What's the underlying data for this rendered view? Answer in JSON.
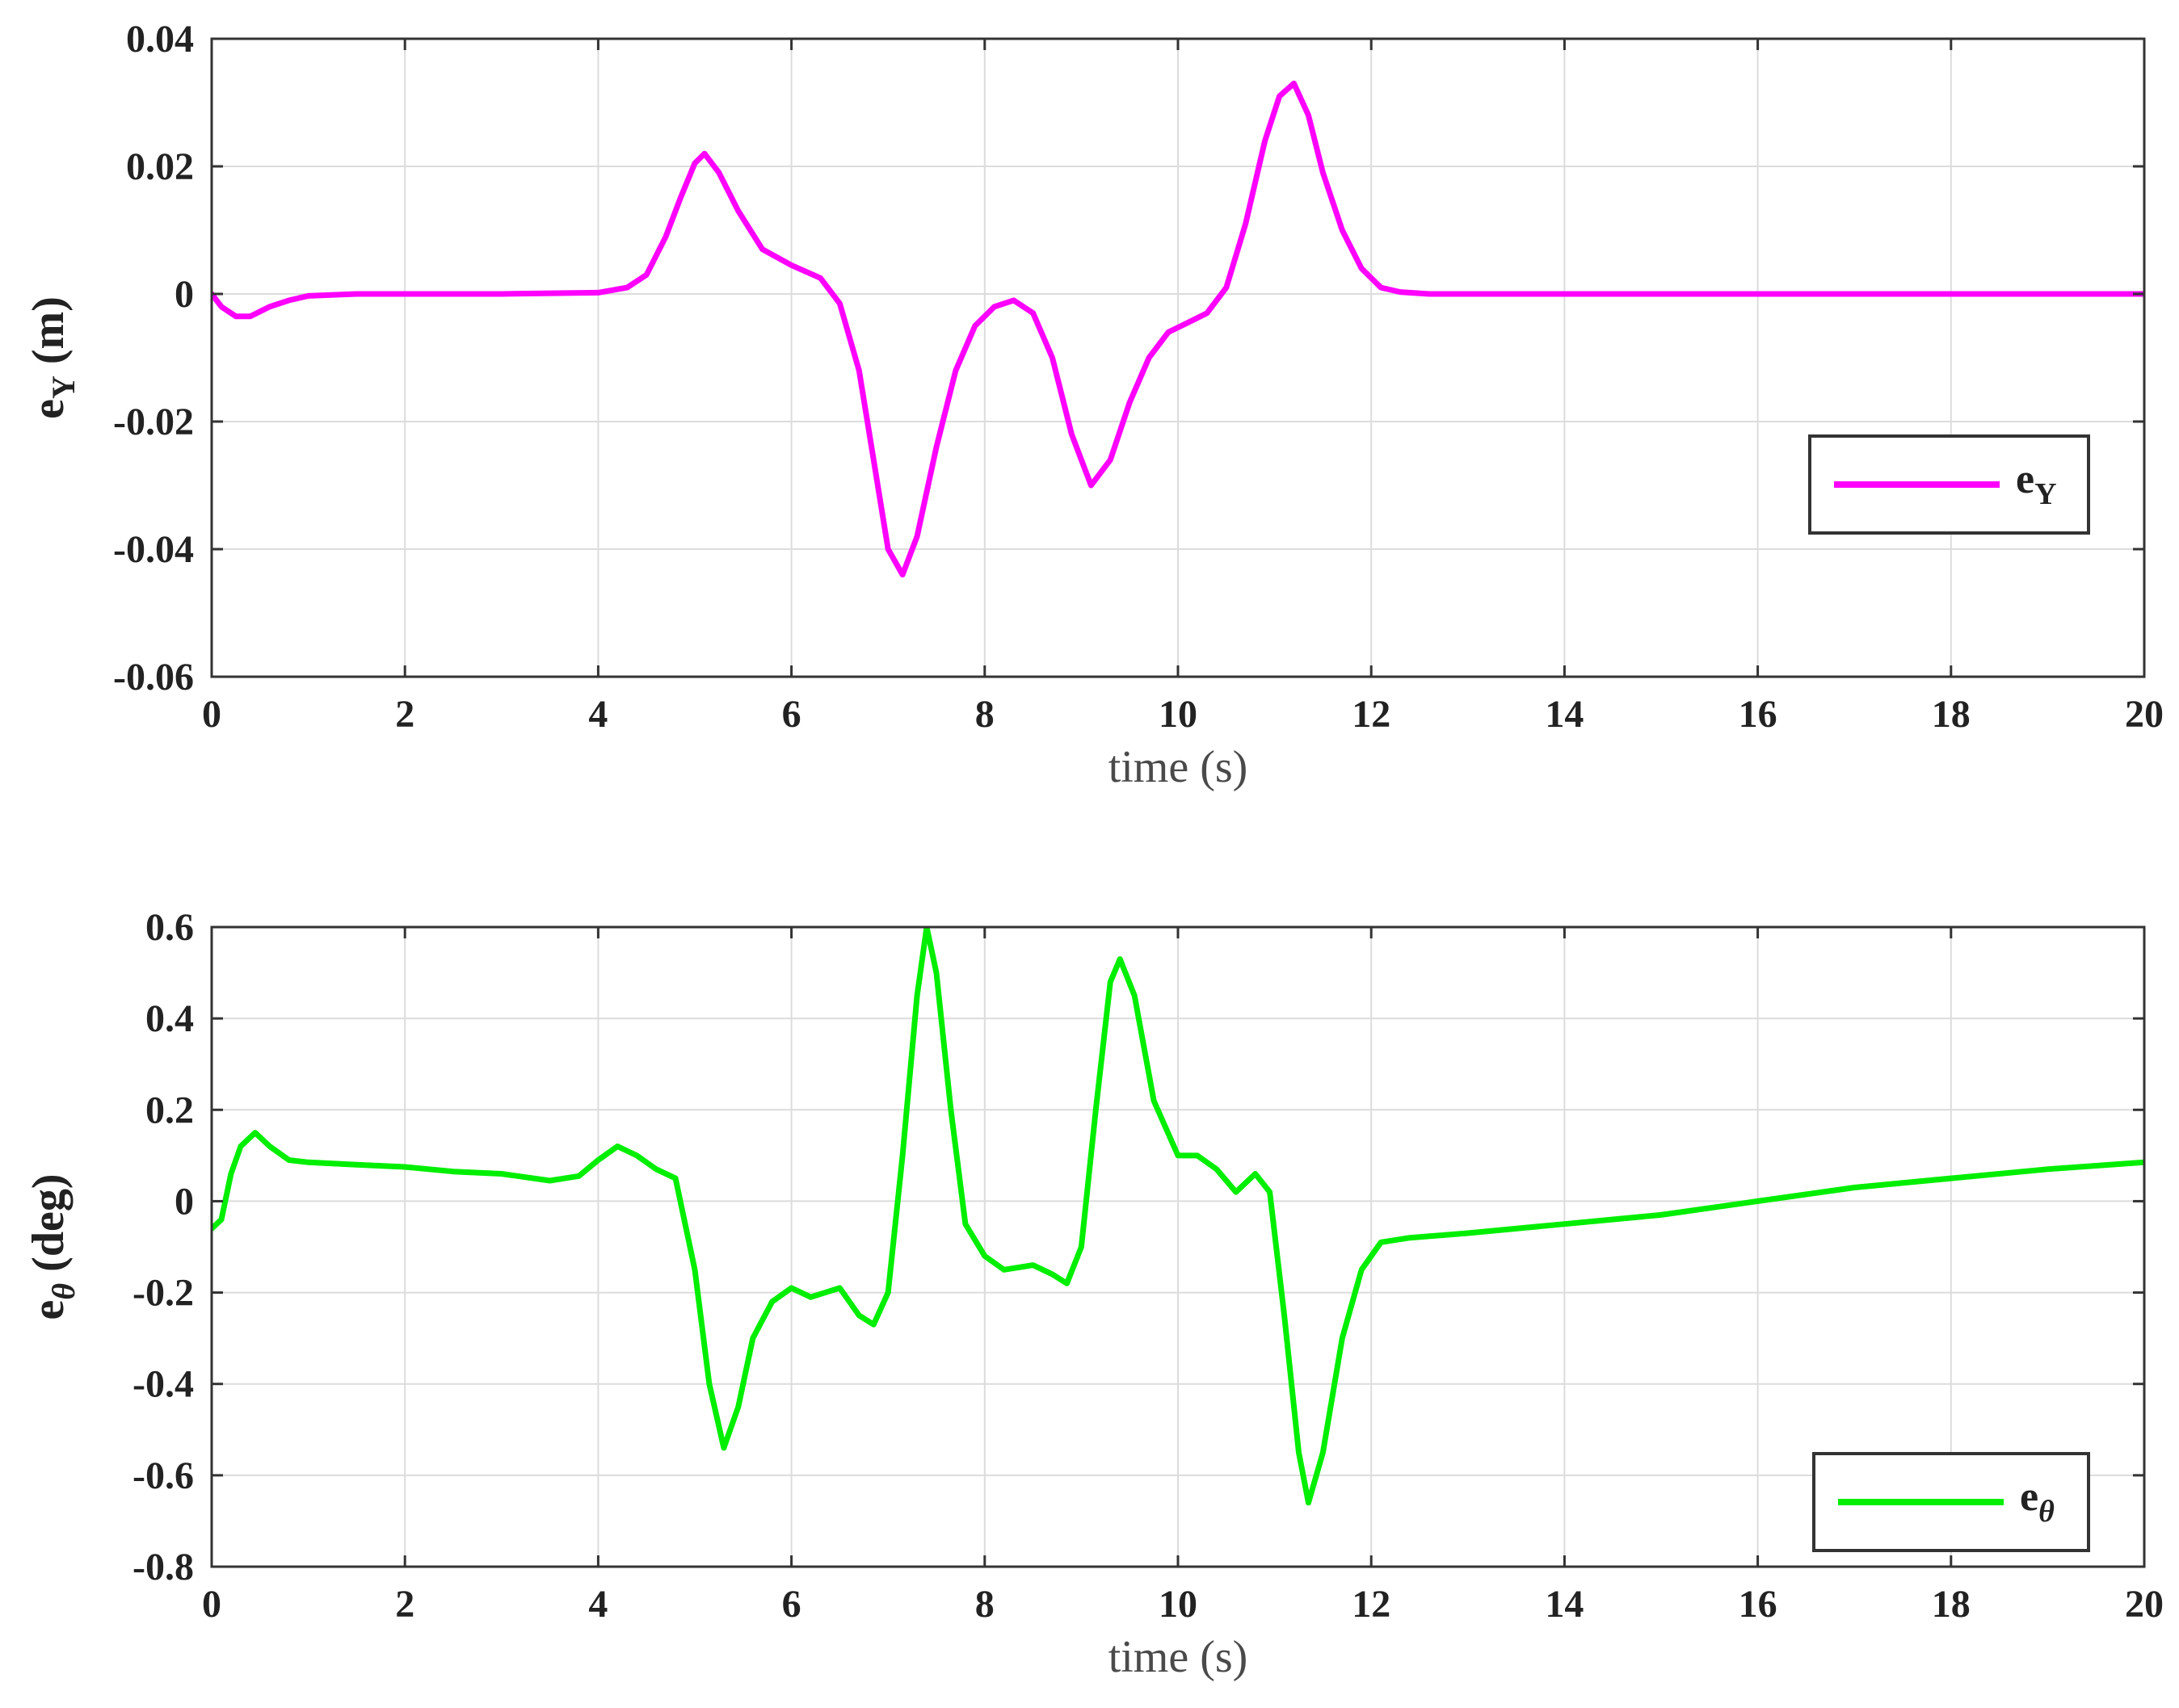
{
  "chart_data": [
    {
      "type": "line",
      "xlabel": "time (s)",
      "ylabel": {
        "main": "e",
        "sub": "Y",
        "unit": "(m)"
      },
      "xlim": [
        0,
        20
      ],
      "ylim": [
        -0.06,
        0.04
      ],
      "xticks": [
        "0",
        "2",
        "4",
        "6",
        "8",
        "10",
        "12",
        "14",
        "16",
        "18",
        "20"
      ],
      "yticks": [
        "-0.06",
        "-0.04",
        "-0.02",
        "0",
        "0.02",
        "0.04"
      ],
      "grid": true,
      "legend_position": "lower-right",
      "series": [
        {
          "name": {
            "main": "e",
            "sub": "Y"
          },
          "color": "#ff00ff",
          "x": [
            0,
            0.1,
            0.25,
            0.4,
            0.6,
            0.8,
            1.0,
            1.5,
            2.0,
            3.0,
            4.0,
            4.3,
            4.5,
            4.7,
            4.85,
            5.0,
            5.1,
            5.25,
            5.45,
            5.7,
            6.0,
            6.3,
            6.5,
            6.7,
            6.85,
            7.0,
            7.15,
            7.3,
            7.5,
            7.7,
            7.9,
            8.1,
            8.3,
            8.5,
            8.7,
            8.9,
            9.1,
            9.3,
            9.5,
            9.7,
            9.9,
            10.1,
            10.3,
            10.5,
            10.7,
            10.9,
            11.05,
            11.2,
            11.35,
            11.5,
            11.7,
            11.9,
            12.1,
            12.3,
            12.6,
            13.0,
            14.0,
            16.0,
            18.0,
            20.0
          ],
          "y": [
            0,
            -0.002,
            -0.0035,
            -0.0035,
            -0.002,
            -0.001,
            -0.0003,
            0,
            0,
            0,
            0.0002,
            0.001,
            0.003,
            0.009,
            0.015,
            0.0205,
            0.022,
            0.019,
            0.013,
            0.007,
            0.0045,
            0.0025,
            -0.0015,
            -0.012,
            -0.026,
            -0.04,
            -0.044,
            -0.038,
            -0.024,
            -0.012,
            -0.005,
            -0.002,
            -0.001,
            -0.003,
            -0.01,
            -0.022,
            -0.03,
            -0.026,
            -0.017,
            -0.01,
            -0.006,
            -0.0045,
            -0.003,
            0.001,
            0.011,
            0.024,
            0.031,
            0.033,
            0.028,
            0.019,
            0.01,
            0.004,
            0.001,
            0.0003,
            0,
            0,
            0,
            0,
            0,
            0
          ]
        }
      ]
    },
    {
      "type": "line",
      "xlabel": "time (s)",
      "ylabel": {
        "main": "e",
        "sub": "θ",
        "unit": "(deg)"
      },
      "xlim": [
        0,
        20
      ],
      "ylim": [
        -0.8,
        0.6
      ],
      "xticks": [
        "0",
        "2",
        "4",
        "6",
        "8",
        "10",
        "12",
        "14",
        "16",
        "18",
        "20"
      ],
      "yticks": [
        "-0.8",
        "-0.6",
        "-0.4",
        "-0.2",
        "0",
        "0.2",
        "0.4",
        "0.6"
      ],
      "grid": true,
      "legend_position": "lower-right",
      "series": [
        {
          "name": {
            "main": "e",
            "sub": "θ"
          },
          "color": "#00ee00",
          "x": [
            0,
            0.1,
            0.2,
            0.3,
            0.45,
            0.6,
            0.8,
            1.0,
            1.5,
            2.0,
            2.5,
            3.0,
            3.5,
            3.8,
            4.0,
            4.2,
            4.4,
            4.6,
            4.8,
            5.0,
            5.15,
            5.3,
            5.45,
            5.6,
            5.8,
            6.0,
            6.2,
            6.5,
            6.7,
            6.85,
            7.0,
            7.15,
            7.3,
            7.4,
            7.5,
            7.65,
            7.8,
            8.0,
            8.2,
            8.5,
            8.7,
            8.85,
            9.0,
            9.15,
            9.3,
            9.4,
            9.55,
            9.75,
            10.0,
            10.2,
            10.4,
            10.6,
            10.8,
            10.95,
            11.1,
            11.25,
            11.35,
            11.5,
            11.7,
            11.9,
            12.1,
            12.4,
            13.0,
            14.0,
            15.0,
            16.0,
            17.0,
            18.0,
            19.0,
            20.0
          ],
          "y": [
            -0.06,
            -0.04,
            0.06,
            0.12,
            0.15,
            0.12,
            0.09,
            0.085,
            0.08,
            0.075,
            0.065,
            0.06,
            0.045,
            0.055,
            0.09,
            0.12,
            0.1,
            0.07,
            0.05,
            -0.15,
            -0.4,
            -0.54,
            -0.45,
            -0.3,
            -0.22,
            -0.19,
            -0.21,
            -0.19,
            -0.25,
            -0.27,
            -0.2,
            0.1,
            0.45,
            0.6,
            0.5,
            0.2,
            -0.05,
            -0.12,
            -0.15,
            -0.14,
            -0.16,
            -0.18,
            -0.1,
            0.2,
            0.48,
            0.53,
            0.45,
            0.22,
            0.1,
            0.1,
            0.07,
            0.02,
            0.06,
            0.02,
            -0.25,
            -0.55,
            -0.66,
            -0.55,
            -0.3,
            -0.15,
            -0.09,
            -0.08,
            -0.07,
            -0.05,
            -0.03,
            0.0,
            0.03,
            0.05,
            0.07,
            0.085
          ]
        }
      ]
    }
  ]
}
